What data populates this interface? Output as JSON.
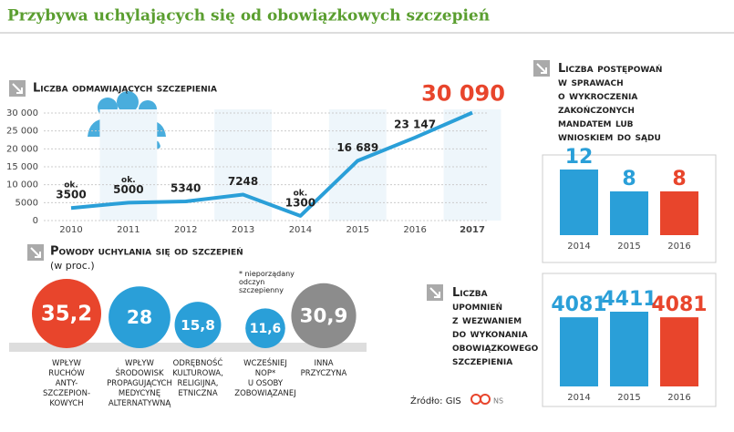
{
  "title": "Przybywa uchylających się od obowiązkowych szczepień",
  "source": "Źródło: GIS",
  "credit": "NS",
  "chart_data": [
    {
      "type": "line",
      "title": "Liczba odmawiających szczepienia",
      "x": [
        "2010",
        "2011",
        "2012",
        "2013",
        "2014",
        "2015",
        "2016",
        "2017"
      ],
      "values": [
        3500,
        5000,
        5340,
        7248,
        1300,
        16689,
        23147,
        30090
      ],
      "value_labels": [
        "3500",
        "5000",
        "5340",
        "7248",
        "1300",
        "16 689",
        "23 147",
        "30 090"
      ],
      "value_prefixes": [
        "ok.",
        "ok.",
        null,
        null,
        "ok.",
        null,
        null,
        null
      ],
      "color": "#2a9fd8",
      "ylim": [
        0,
        30000
      ],
      "yticks": [
        0,
        5000,
        {
          "value": 10000,
          "label": "10 000"
        },
        {
          "value": 15000,
          "label": "15 000"
        },
        {
          "value": 20000,
          "label": "20 000"
        },
        {
          "value": 25000,
          "label": "25 000"
        },
        {
          "value": 30000,
          "label": "30 000"
        }
      ],
      "grid": true
    },
    {
      "type": "bar",
      "title": "Liczba postępowań\nw sprawach\no wykroczenia\nzakończonych\nmandatem lub\nwnioskiem do sądu",
      "categories": [
        "2014",
        "2015",
        "2016"
      ],
      "values": [
        12,
        8,
        8
      ],
      "colors": [
        "#2a9fd8",
        "#2a9fd8",
        "#e8452c"
      ]
    },
    {
      "type": "bubble",
      "title": "Powody uchylania się od szczepień",
      "subtitle": "(w proc.)",
      "note": "* nieporządany\nodczyn\nszczepienny",
      "categories": [
        "WPŁYW\nRUCHÓW\nANTY-\nSZCZEPION-\nKOWYCH",
        "WPŁYW\nŚRODOWISK\nPROPAGUJĄCYCH\nMEDYCYNĘ\nALTERNATYWNĄ",
        "ODRĘBNOŚĆ\nKULTUROWA,\nRELIGIJNA,\nETNICZNA",
        "WCZEŚNIEJ\nNOP*\nU OSOBY\nZOBOWIĄZANEJ",
        "INNA\nPRZYCZYNA"
      ],
      "values": [
        35.2,
        28,
        15.8,
        11.6,
        30.9
      ],
      "value_labels": [
        "35,2",
        "28",
        "15,8",
        "11,6",
        "30,9"
      ],
      "colors": [
        "#e8452c",
        "#2a9fd8",
        "#2a9fd8",
        "#2a9fd8",
        "#8c8c8c"
      ]
    },
    {
      "type": "bar",
      "title": "Liczba\nupomnień\nz wezwaniem\ndo wykonania\nobowiązkowego\nszczepienia",
      "categories": [
        "2014",
        "2015",
        "2016"
      ],
      "values": [
        4081,
        4411,
        4081
      ],
      "colors": [
        "#2a9fd8",
        "#2a9fd8",
        "#e8452c"
      ]
    }
  ]
}
